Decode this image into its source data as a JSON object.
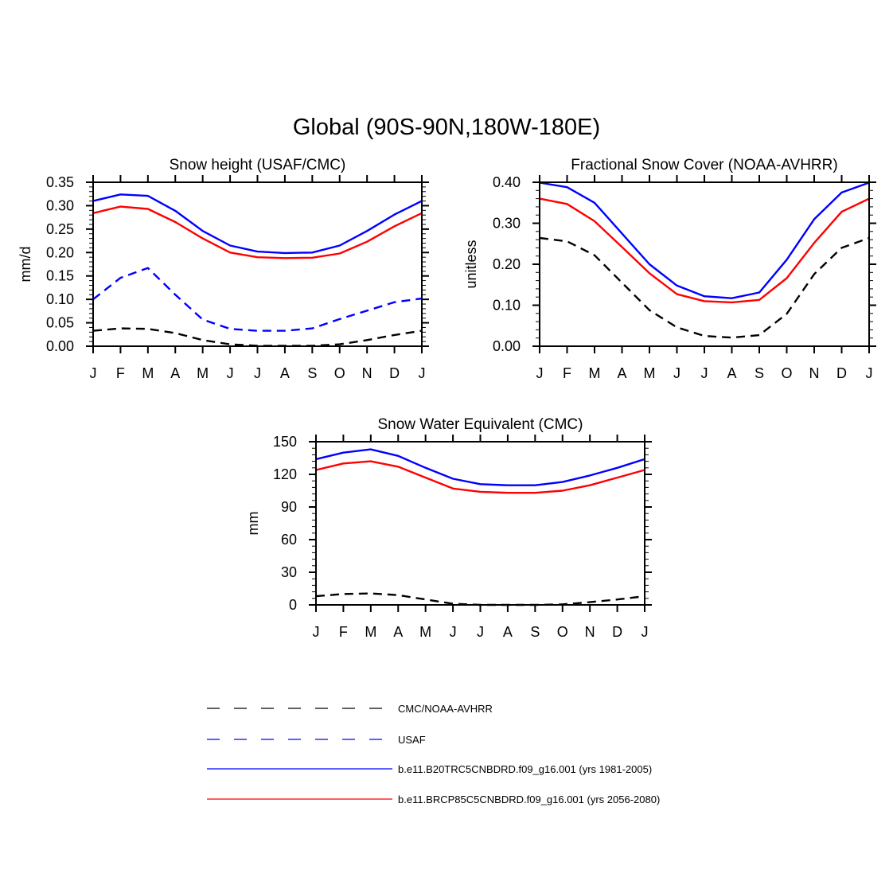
{
  "title": "Global (90S-90N,180W-180E)",
  "colors": {
    "obs": "#000000",
    "usaf": "#0000ff",
    "hist": "#0000ff",
    "future": "#ff0000"
  },
  "legend": [
    {
      "label": "CMC/NOAA-AVHRR",
      "color": "#000000",
      "style": "dashed"
    },
    {
      "label": "USAF",
      "color": "#0000ff",
      "style": "dashed"
    },
    {
      "label": "b.e11.B20TRC5CNBDRD.f09_g16.001 (yrs 1981-2005)",
      "color": "#0000ff",
      "style": "solid"
    },
    {
      "label": "b.e11.BRCP85C5CNBDRD.f09_g16.001 (yrs 2056-2080)",
      "color": "#ff0000",
      "style": "solid"
    }
  ],
  "chart_data": [
    {
      "type": "line",
      "title": "Snow height (USAF/CMC)",
      "xlabel": "",
      "ylabel": "mm/d",
      "categories": [
        "J",
        "F",
        "M",
        "A",
        "M",
        "J",
        "J",
        "A",
        "S",
        "O",
        "N",
        "D",
        "J"
      ],
      "ylim": [
        0,
        0.35
      ],
      "yticks": [
        "0.00",
        "0.05",
        "0.10",
        "0.15",
        "0.20",
        "0.25",
        "0.30",
        "0.35"
      ],
      "series": [
        {
          "name": "b.e11.B20TRC5CNBDRD.f09_g16.001 (yrs 1981-2005)",
          "color": "#0000ff",
          "dashed": false,
          "values": [
            0.31,
            0.324,
            0.321,
            0.289,
            0.246,
            0.215,
            0.202,
            0.199,
            0.2,
            0.215,
            0.246,
            0.281,
            0.31
          ]
        },
        {
          "name": "b.e11.BRCP85C5CNBDRD.f09_g16.001 (yrs 2056-2080)",
          "color": "#ff0000",
          "dashed": false,
          "values": [
            0.284,
            0.298,
            0.293,
            0.265,
            0.23,
            0.2,
            0.19,
            0.188,
            0.189,
            0.198,
            0.223,
            0.256,
            0.284
          ]
        },
        {
          "name": "USAF",
          "color": "#0000ff",
          "dashed": true,
          "values": [
            0.1,
            0.146,
            0.167,
            0.11,
            0.057,
            0.037,
            0.033,
            0.033,
            0.038,
            0.058,
            0.076,
            0.094,
            0.102
          ]
        },
        {
          "name": "CMC/NOAA-AVHRR",
          "color": "#000000",
          "dashed": true,
          "values": [
            0.033,
            0.038,
            0.037,
            0.028,
            0.013,
            0.004,
            0.001,
            0.001,
            0.001,
            0.004,
            0.013,
            0.024,
            0.033
          ]
        }
      ]
    },
    {
      "type": "line",
      "title": "Fractional Snow Cover (NOAA-AVHRR)",
      "xlabel": "",
      "ylabel": "unitless",
      "categories": [
        "J",
        "F",
        "M",
        "A",
        "M",
        "J",
        "J",
        "A",
        "S",
        "O",
        "N",
        "D",
        "J"
      ],
      "ylim": [
        0,
        0.4
      ],
      "yticks": [
        "0.00",
        "0.10",
        "0.20",
        "0.30",
        "0.40"
      ],
      "series": [
        {
          "name": "b.e11.B20TRC5CNBDRD.f09_g16.001 (yrs 1981-2005)",
          "color": "#0000ff",
          "dashed": false,
          "values": [
            0.399,
            0.388,
            0.35,
            0.275,
            0.2,
            0.148,
            0.122,
            0.117,
            0.131,
            0.211,
            0.31,
            0.375,
            0.399
          ]
        },
        {
          "name": "b.e11.BRCP85C5CNBDRD.f09_g16.001 (yrs 2056-2080)",
          "color": "#ff0000",
          "dashed": false,
          "values": [
            0.36,
            0.347,
            0.305,
            0.242,
            0.178,
            0.127,
            0.11,
            0.107,
            0.113,
            0.166,
            0.252,
            0.328,
            0.36
          ]
        },
        {
          "name": "CMC/NOAA-AVHRR",
          "color": "#000000",
          "dashed": true,
          "values": [
            0.264,
            0.256,
            0.222,
            0.155,
            0.088,
            0.046,
            0.025,
            0.021,
            0.027,
            0.079,
            0.176,
            0.24,
            0.264
          ]
        }
      ]
    },
    {
      "type": "line",
      "title": "Snow Water Equivalent (CMC)",
      "xlabel": "",
      "ylabel": "mm",
      "categories": [
        "J",
        "F",
        "M",
        "A",
        "M",
        "J",
        "J",
        "A",
        "S",
        "O",
        "N",
        "D",
        "J"
      ],
      "ylim": [
        0,
        150
      ],
      "yticks": [
        "0",
        "30",
        "60",
        "90",
        "120",
        "150"
      ],
      "series": [
        {
          "name": "b.e11.B20TRC5CNBDRD.f09_g16.001 (yrs 1981-2005)",
          "color": "#0000ff",
          "dashed": false,
          "values": [
            134,
            140,
            143,
            137,
            126,
            116,
            111,
            110,
            110,
            113,
            119,
            126,
            134
          ]
        },
        {
          "name": "b.e11.BRCP85C5CNBDRD.f09_g16.001 (yrs 2056-2080)",
          "color": "#ff0000",
          "dashed": false,
          "values": [
            124,
            130,
            132,
            127,
            117,
            107,
            104,
            103,
            103,
            105,
            110,
            117,
            124
          ]
        },
        {
          "name": "CMC/NOAA-AVHRR",
          "color": "#000000",
          "dashed": true,
          "values": [
            8,
            10,
            10.5,
            9,
            5,
            1,
            0,
            0,
            0,
            0.5,
            2.5,
            5,
            8
          ]
        }
      ]
    }
  ]
}
